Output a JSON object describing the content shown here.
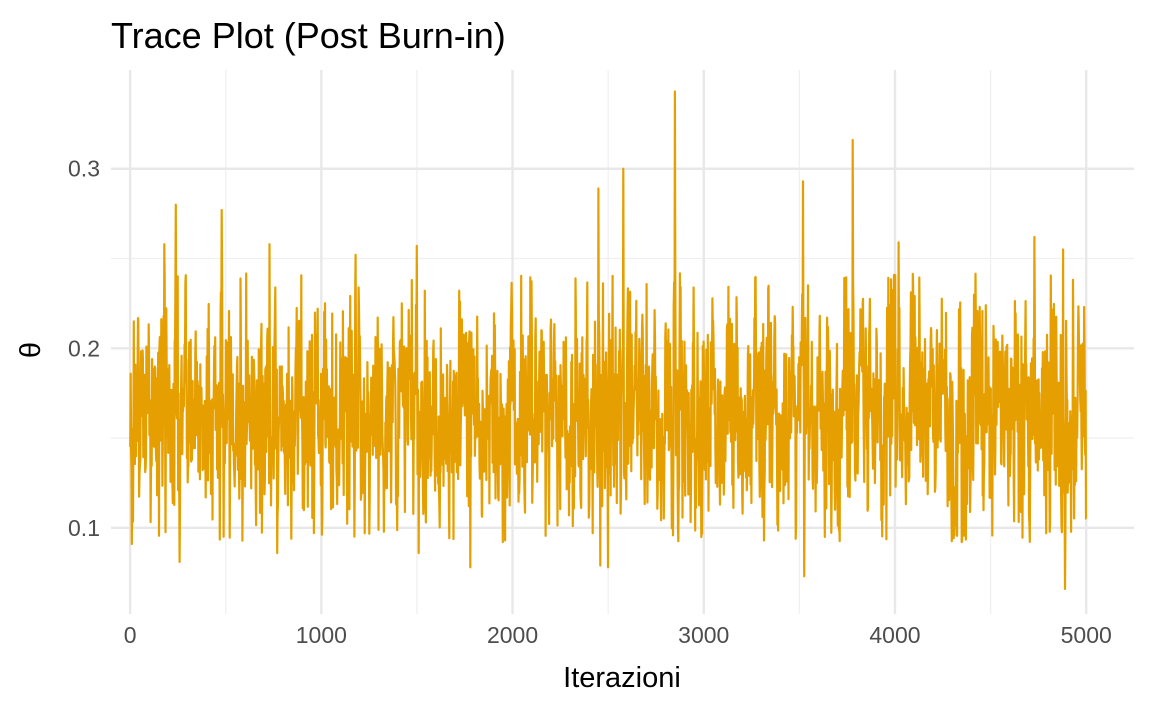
{
  "chart_data": {
    "type": "line",
    "title": "Trace Plot (Post Burn-in)",
    "xlabel": "Iterazioni",
    "ylabel": "θ",
    "xlim": [
      -100,
      5250
    ],
    "ylim": [
      0.052,
      0.355
    ],
    "x_ticks": [
      0,
      1000,
      2000,
      3000,
      4000,
      5000
    ],
    "x_tick_labels": [
      "0",
      "1000",
      "2000",
      "3000",
      "4000",
      "5000"
    ],
    "y_ticks": [
      0.1,
      0.2,
      0.3
    ],
    "y_tick_labels": [
      "0.1",
      "0.2",
      "0.3"
    ],
    "x_minor_ticks": [
      500,
      1500,
      2500,
      3500,
      4500
    ],
    "y_minor_ticks": [
      0.15,
      0.25
    ],
    "grid": true,
    "legend": "none",
    "series": [
      {
        "color": "#E69F00",
        "n_iterations": 5000,
        "mean": 0.165,
        "sd": 0.032,
        "min": 0.066,
        "max": 0.343,
        "notable_points": [
          {
            "x": 1,
            "y": 0.145
          },
          {
            "x": 10,
            "y": 0.091
          },
          {
            "x": 20,
            "y": 0.215
          },
          {
            "x": 180,
            "y": 0.258
          },
          {
            "x": 240,
            "y": 0.28
          },
          {
            "x": 260,
            "y": 0.081
          },
          {
            "x": 480,
            "y": 0.277
          },
          {
            "x": 490,
            "y": 0.095
          },
          {
            "x": 730,
            "y": 0.258
          },
          {
            "x": 770,
            "y": 0.086
          },
          {
            "x": 1180,
            "y": 0.252
          },
          {
            "x": 1500,
            "y": 0.257
          },
          {
            "x": 1510,
            "y": 0.086
          },
          {
            "x": 1780,
            "y": 0.078
          },
          {
            "x": 2450,
            "y": 0.289
          },
          {
            "x": 2460,
            "y": 0.079
          },
          {
            "x": 2500,
            "y": 0.078
          },
          {
            "x": 2580,
            "y": 0.3
          },
          {
            "x": 2850,
            "y": 0.343
          },
          {
            "x": 3520,
            "y": 0.293
          },
          {
            "x": 3525,
            "y": 0.073
          },
          {
            "x": 3780,
            "y": 0.316
          },
          {
            "x": 4020,
            "y": 0.259
          },
          {
            "x": 4730,
            "y": 0.262
          },
          {
            "x": 4880,
            "y": 0.255
          },
          {
            "x": 4890,
            "y": 0.066
          },
          {
            "x": 4990,
            "y": 0.223
          },
          {
            "x": 5000,
            "y": 0.105
          }
        ]
      }
    ]
  }
}
